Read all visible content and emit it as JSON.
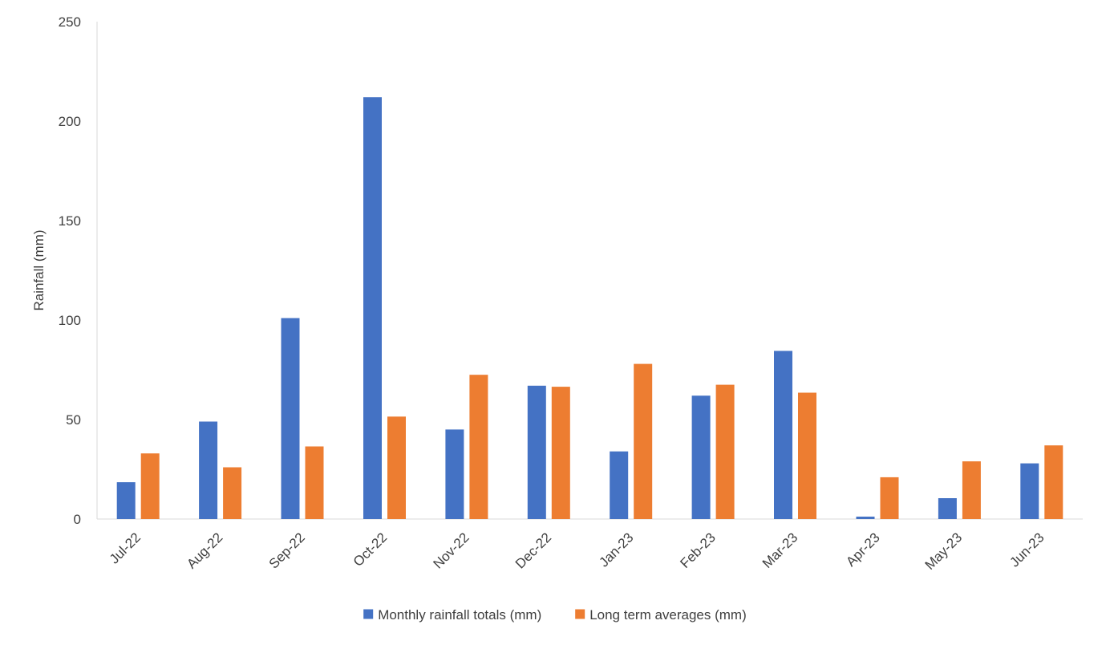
{
  "chart_data": {
    "type": "bar",
    "title": "",
    "xlabel": "",
    "ylabel": "Rainfall (mm)",
    "ylim": [
      0,
      250
    ],
    "yticks": [
      0,
      50,
      100,
      150,
      200,
      250
    ],
    "categories": [
      "Jul-22",
      "Aug-22",
      "Sep-22",
      "Oct-22",
      "Nov-22",
      "Dec-22",
      "Jan-23",
      "Feb-23",
      "Mar-23",
      "Apr-23",
      "May-23",
      "Jun-23"
    ],
    "series": [
      {
        "name": "Monthly rainfall totals (mm)",
        "color": "#4472C4",
        "values": [
          18.5,
          49,
          101,
          212,
          45,
          67,
          34,
          62,
          84.5,
          1.2,
          10.5,
          28
        ]
      },
      {
        "name": "Long term averages (mm)",
        "color": "#ED7D31",
        "values": [
          33,
          26,
          36.5,
          51.5,
          72.5,
          66.5,
          78,
          67.5,
          63.5,
          21,
          29,
          37
        ]
      }
    ],
    "grid": false,
    "legend_position": "bottom",
    "axis_color": "#D9D9D9"
  }
}
